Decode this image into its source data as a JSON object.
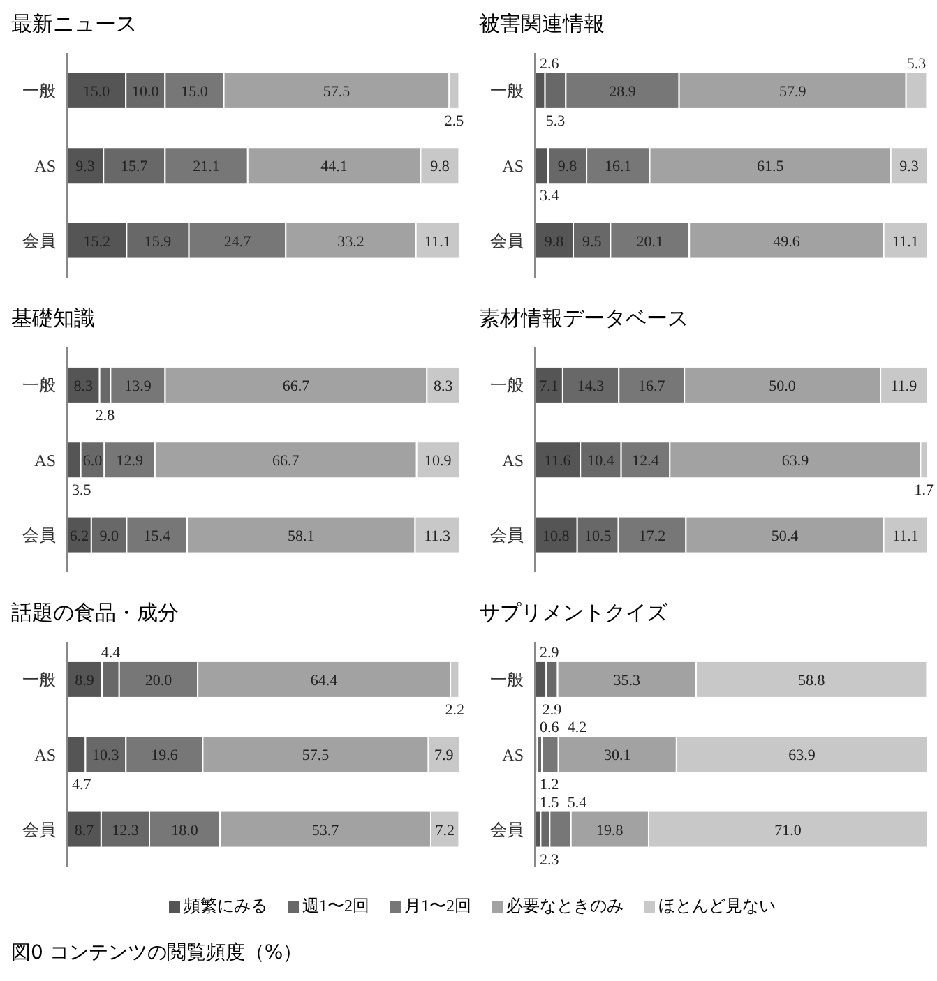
{
  "chart_data": [
    {
      "type": "bar",
      "title": "最新ニュース",
      "orientation": "horizontal",
      "stacked": true,
      "legend": "bottom",
      "categories": [
        "一般",
        "AS",
        "会員"
      ],
      "series": [
        {
          "name": "頻繁にみる",
          "color": "#555555",
          "values": [
            15.0,
            9.3,
            15.2
          ],
          "value_labels": [
            "15.0",
            "9.3",
            "15.2"
          ]
        },
        {
          "name": "週1〜2回",
          "color": "#686868",
          "values": [
            10.0,
            15.7,
            15.9
          ],
          "value_labels": [
            "10.0",
            "15.7",
            "15.9"
          ]
        },
        {
          "name": "月1〜2回",
          "color": "#777777",
          "values": [
            15.0,
            21.1,
            24.7
          ],
          "value_labels": [
            "15.0",
            "21.1",
            "24.7"
          ]
        },
        {
          "name": "必要なときのみ",
          "color": "#a2a2a2",
          "values": [
            57.5,
            44.1,
            33.2
          ],
          "value_labels": [
            "57.5",
            "44.1",
            "33.2"
          ]
        },
        {
          "name": "ほとんど見ない",
          "color": "#c8c8c8",
          "values": [
            2.5,
            9.8,
            11.1
          ],
          "value_labels": [
            "2.5",
            "9.8",
            "11.1"
          ]
        }
      ]
    },
    {
      "type": "bar",
      "title": "被害関連情報",
      "orientation": "horizontal",
      "stacked": true,
      "categories": [
        "一般",
        "AS",
        "会員"
      ],
      "series": [
        {
          "color": "#555555",
          "values": [
            2.6,
            3.4,
            9.8
          ],
          "value_labels": [
            "2.6",
            "3.4",
            "9.8"
          ]
        },
        {
          "color": "#686868",
          "values": [
            5.3,
            9.8,
            9.5
          ],
          "value_labels": [
            "5.3",
            "9.8",
            "9.5"
          ]
        },
        {
          "color": "#777777",
          "values": [
            28.9,
            16.1,
            20.1
          ],
          "value_labels": [
            "28.9",
            "16.1",
            "20.1"
          ]
        },
        {
          "color": "#a2a2a2",
          "values": [
            57.9,
            61.5,
            49.6
          ],
          "value_labels": [
            "57.9",
            "61.5",
            "49.6"
          ]
        },
        {
          "color": "#c8c8c8",
          "values": [
            5.3,
            9.3,
            11.1
          ],
          "value_labels": [
            "5.3",
            "9.3",
            "11.1"
          ]
        }
      ]
    },
    {
      "type": "bar",
      "title": "基礎知識",
      "orientation": "horizontal",
      "stacked": true,
      "categories": [
        "一般",
        "AS",
        "会員"
      ],
      "series": [
        {
          "color": "#555555",
          "values": [
            8.3,
            3.5,
            6.2
          ],
          "value_labels": [
            "8.3",
            "3.5",
            "6.2"
          ]
        },
        {
          "color": "#686868",
          "values": [
            2.8,
            6.0,
            9.0
          ],
          "value_labels": [
            "2.8",
            "6.0",
            "9.0"
          ]
        },
        {
          "color": "#777777",
          "values": [
            13.9,
            12.9,
            15.4
          ],
          "value_labels": [
            "13.9",
            "12.9",
            "15.4"
          ]
        },
        {
          "color": "#a2a2a2",
          "values": [
            66.7,
            66.7,
            58.1
          ],
          "value_labels": [
            "66.7",
            "66.7",
            "58.1"
          ]
        },
        {
          "color": "#c8c8c8",
          "values": [
            8.3,
            10.9,
            11.3
          ],
          "value_labels": [
            "8.3",
            "10.9",
            "11.3"
          ]
        }
      ]
    },
    {
      "type": "bar",
      "title": "素材情報データベース",
      "orientation": "horizontal",
      "stacked": true,
      "categories": [
        "一般",
        "AS",
        "会員"
      ],
      "series": [
        {
          "color": "#555555",
          "values": [
            7.1,
            11.6,
            10.8
          ],
          "value_labels": [
            "7.1",
            "11.6",
            "10.8"
          ]
        },
        {
          "color": "#686868",
          "values": [
            14.3,
            10.4,
            10.5
          ],
          "value_labels": [
            "14.3",
            "10.4",
            "10.5"
          ]
        },
        {
          "color": "#777777",
          "values": [
            16.7,
            12.4,
            17.2
          ],
          "value_labels": [
            "16.7",
            "12.4",
            "17.2"
          ]
        },
        {
          "color": "#a2a2a2",
          "values": [
            50.0,
            63.9,
            50.4
          ],
          "value_labels": [
            "50.0",
            "63.9",
            "50.4"
          ]
        },
        {
          "color": "#c8c8c8",
          "values": [
            11.9,
            1.7,
            11.1
          ],
          "value_labels": [
            "11.9",
            "1.7",
            "11.1"
          ]
        }
      ]
    },
    {
      "type": "bar",
      "title": "話題の食品・成分",
      "orientation": "horizontal",
      "stacked": true,
      "categories": [
        "一般",
        "AS",
        "会員"
      ],
      "series": [
        {
          "color": "#555555",
          "values": [
            8.9,
            4.7,
            8.7
          ],
          "value_labels": [
            "8.9",
            "4.7",
            "8.7"
          ]
        },
        {
          "color": "#686868",
          "values": [
            4.4,
            10.3,
            12.3
          ],
          "value_labels": [
            "4.4",
            "10.3",
            "12.3"
          ]
        },
        {
          "color": "#777777",
          "values": [
            20.0,
            19.6,
            18.0
          ],
          "value_labels": [
            "20.0",
            "19.6",
            "18.0"
          ]
        },
        {
          "color": "#a2a2a2",
          "values": [
            64.4,
            57.5,
            53.7
          ],
          "value_labels": [
            "64.4",
            "57.5",
            "53.7"
          ]
        },
        {
          "color": "#c8c8c8",
          "values": [
            2.2,
            7.9,
            7.2
          ],
          "value_labels": [
            "2.2",
            "7.9",
            "7.2"
          ]
        }
      ]
    },
    {
      "type": "bar",
      "title": "サプリメントクイズ",
      "orientation": "horizontal",
      "stacked": true,
      "categories": [
        "一般",
        "AS",
        "会員"
      ],
      "series": [
        {
          "color": "#555555",
          "values": [
            2.9,
            0.6,
            1.5
          ],
          "value_labels": [
            "2.9",
            "0.6",
            "1.5"
          ]
        },
        {
          "color": "#686868",
          "values": [
            2.9,
            1.2,
            2.3
          ],
          "value_labels": [
            "2.9",
            "1.2",
            "2.3"
          ]
        },
        {
          "color": "#777777",
          "values": [
            null,
            4.2,
            5.4
          ],
          "value_labels": [
            null,
            "4.2",
            "5.4"
          ]
        },
        {
          "color": "#a2a2a2",
          "values": [
            35.3,
            30.1,
            19.8
          ],
          "value_labels": [
            "35.3",
            "30.1",
            "19.8"
          ]
        },
        {
          "color": "#c8c8c8",
          "values": [
            58.8,
            63.9,
            71.0
          ],
          "value_labels": [
            "58.8",
            "63.9",
            "71.0"
          ]
        }
      ],
      "annotations": [
        "図0 コンテンツの閲覧頻度（%）"
      ]
    }
  ]
}
